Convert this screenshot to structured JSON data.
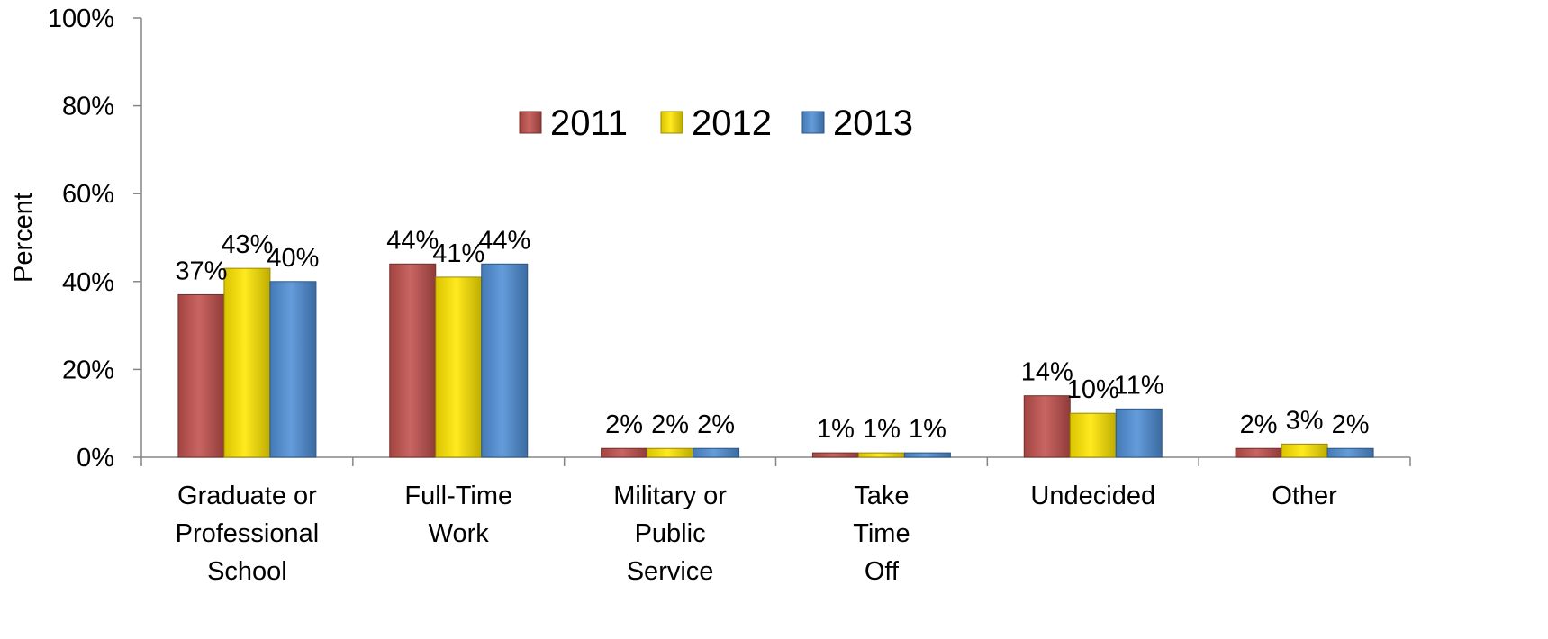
{
  "chart_data": {
    "type": "bar",
    "categories": [
      [
        "Graduate or",
        "Professional",
        "School"
      ],
      [
        "Full-Time",
        "Work"
      ],
      [
        "Military or",
        "Public",
        "Service"
      ],
      [
        "Take",
        "Time",
        "Off"
      ],
      [
        "Undecided"
      ],
      [
        "Other"
      ]
    ],
    "series": [
      {
        "name": "2011",
        "color": "#c0504d",
        "values": [
          37,
          44,
          2,
          1,
          14,
          2
        ],
        "labels": [
          "37%",
          "44%",
          "2%",
          "1%",
          "14%",
          "2%"
        ]
      },
      {
        "name": "2012",
        "color": "#ffe600",
        "values": [
          43,
          41,
          2,
          1,
          10,
          3
        ],
        "labels": [
          "43%",
          "41%",
          "2%",
          "1%",
          "10%",
          "3%"
        ]
      },
      {
        "name": "2013",
        "color": "#4f8fd6",
        "values": [
          40,
          44,
          2,
          1,
          11,
          2
        ],
        "labels": [
          "40%",
          "44%",
          "2%",
          "1%",
          "11%",
          "2%"
        ]
      }
    ],
    "ylabel": "Percent",
    "ylim": [
      0,
      100
    ],
    "yticks": [
      "0%",
      "20%",
      "40%",
      "60%",
      "80%",
      "100%"
    ],
    "ytick_values": [
      0,
      20,
      40,
      60,
      80,
      100
    ],
    "grid": false,
    "legend_position": "top-center"
  }
}
